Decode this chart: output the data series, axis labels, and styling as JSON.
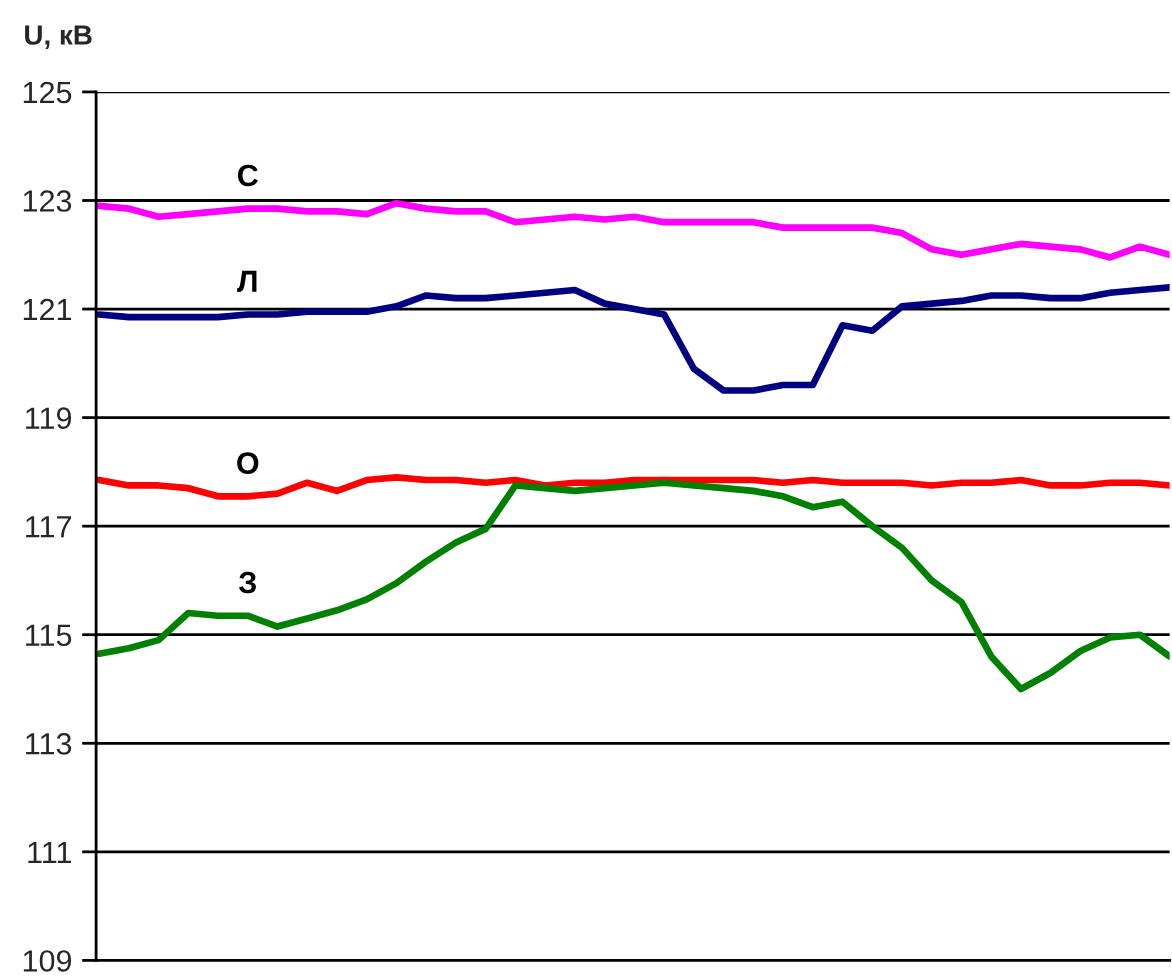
{
  "chart_data": {
    "type": "line",
    "ylabel": "U, кВ",
    "categories": [
      null,
      null,
      null,
      null,
      null,
      null,
      null,
      null,
      null,
      null,
      null,
      null,
      null,
      null,
      null,
      null,
      null,
      null,
      null,
      null,
      null,
      null,
      null,
      null,
      null,
      null,
      null,
      null,
      null,
      null,
      null,
      null,
      null,
      null,
      null,
      null,
      null
    ],
    "ylim": [
      109,
      125
    ],
    "yticks": [
      109,
      111,
      113,
      115,
      117,
      119,
      121,
      123,
      125
    ],
    "grid": "y",
    "legend": false,
    "series": [
      {
        "name": "С",
        "color": "#ff00ff",
        "values": [
          122.9,
          122.85,
          122.7,
          122.75,
          122.8,
          122.85,
          122.85,
          122.8,
          122.8,
          122.75,
          122.95,
          122.85,
          122.8,
          122.8,
          122.6,
          122.65,
          122.7,
          122.65,
          122.7,
          122.6,
          122.6,
          122.6,
          122.6,
          122.5,
          122.5,
          122.5,
          122.5,
          122.4,
          122.1,
          122.0,
          122.1,
          122.2,
          122.15,
          122.1,
          121.95,
          122.15,
          122.0
        ]
      },
      {
        "name": "Л",
        "color": "#000080",
        "values": [
          120.9,
          120.85,
          120.85,
          120.85,
          120.85,
          120.9,
          120.9,
          120.95,
          120.95,
          120.95,
          121.05,
          121.25,
          121.2,
          121.2,
          121.25,
          121.3,
          121.35,
          121.1,
          121.0,
          120.9,
          119.9,
          119.5,
          119.5,
          119.6,
          119.6,
          120.7,
          120.6,
          121.05,
          121.1,
          121.15,
          121.25,
          121.25,
          121.2,
          121.2,
          121.3,
          121.35,
          121.4
        ]
      },
      {
        "name": "О",
        "color": "#ff0000",
        "values": [
          117.85,
          117.75,
          117.75,
          117.7,
          117.55,
          117.55,
          117.6,
          117.8,
          117.65,
          117.85,
          117.9,
          117.85,
          117.85,
          117.8,
          117.85,
          117.75,
          117.8,
          117.8,
          117.85,
          117.85,
          117.85,
          117.85,
          117.85,
          117.8,
          117.85,
          117.8,
          117.8,
          117.8,
          117.75,
          117.8,
          117.8,
          117.85,
          117.75,
          117.75,
          117.8,
          117.8,
          117.75
        ]
      },
      {
        "name": "З",
        "color": "#008000",
        "values": [
          114.65,
          114.75,
          114.9,
          115.4,
          115.35,
          115.35,
          115.15,
          115.3,
          115.45,
          115.65,
          115.95,
          116.35,
          116.7,
          116.95,
          117.75,
          117.7,
          117.65,
          117.7,
          117.75,
          117.8,
          117.75,
          117.7,
          117.65,
          117.55,
          117.35,
          117.45,
          117.0,
          116.6,
          116.0,
          115.6,
          114.6,
          114.0,
          114.3,
          114.7,
          114.95,
          115.0,
          114.6
        ]
      }
    ]
  }
}
